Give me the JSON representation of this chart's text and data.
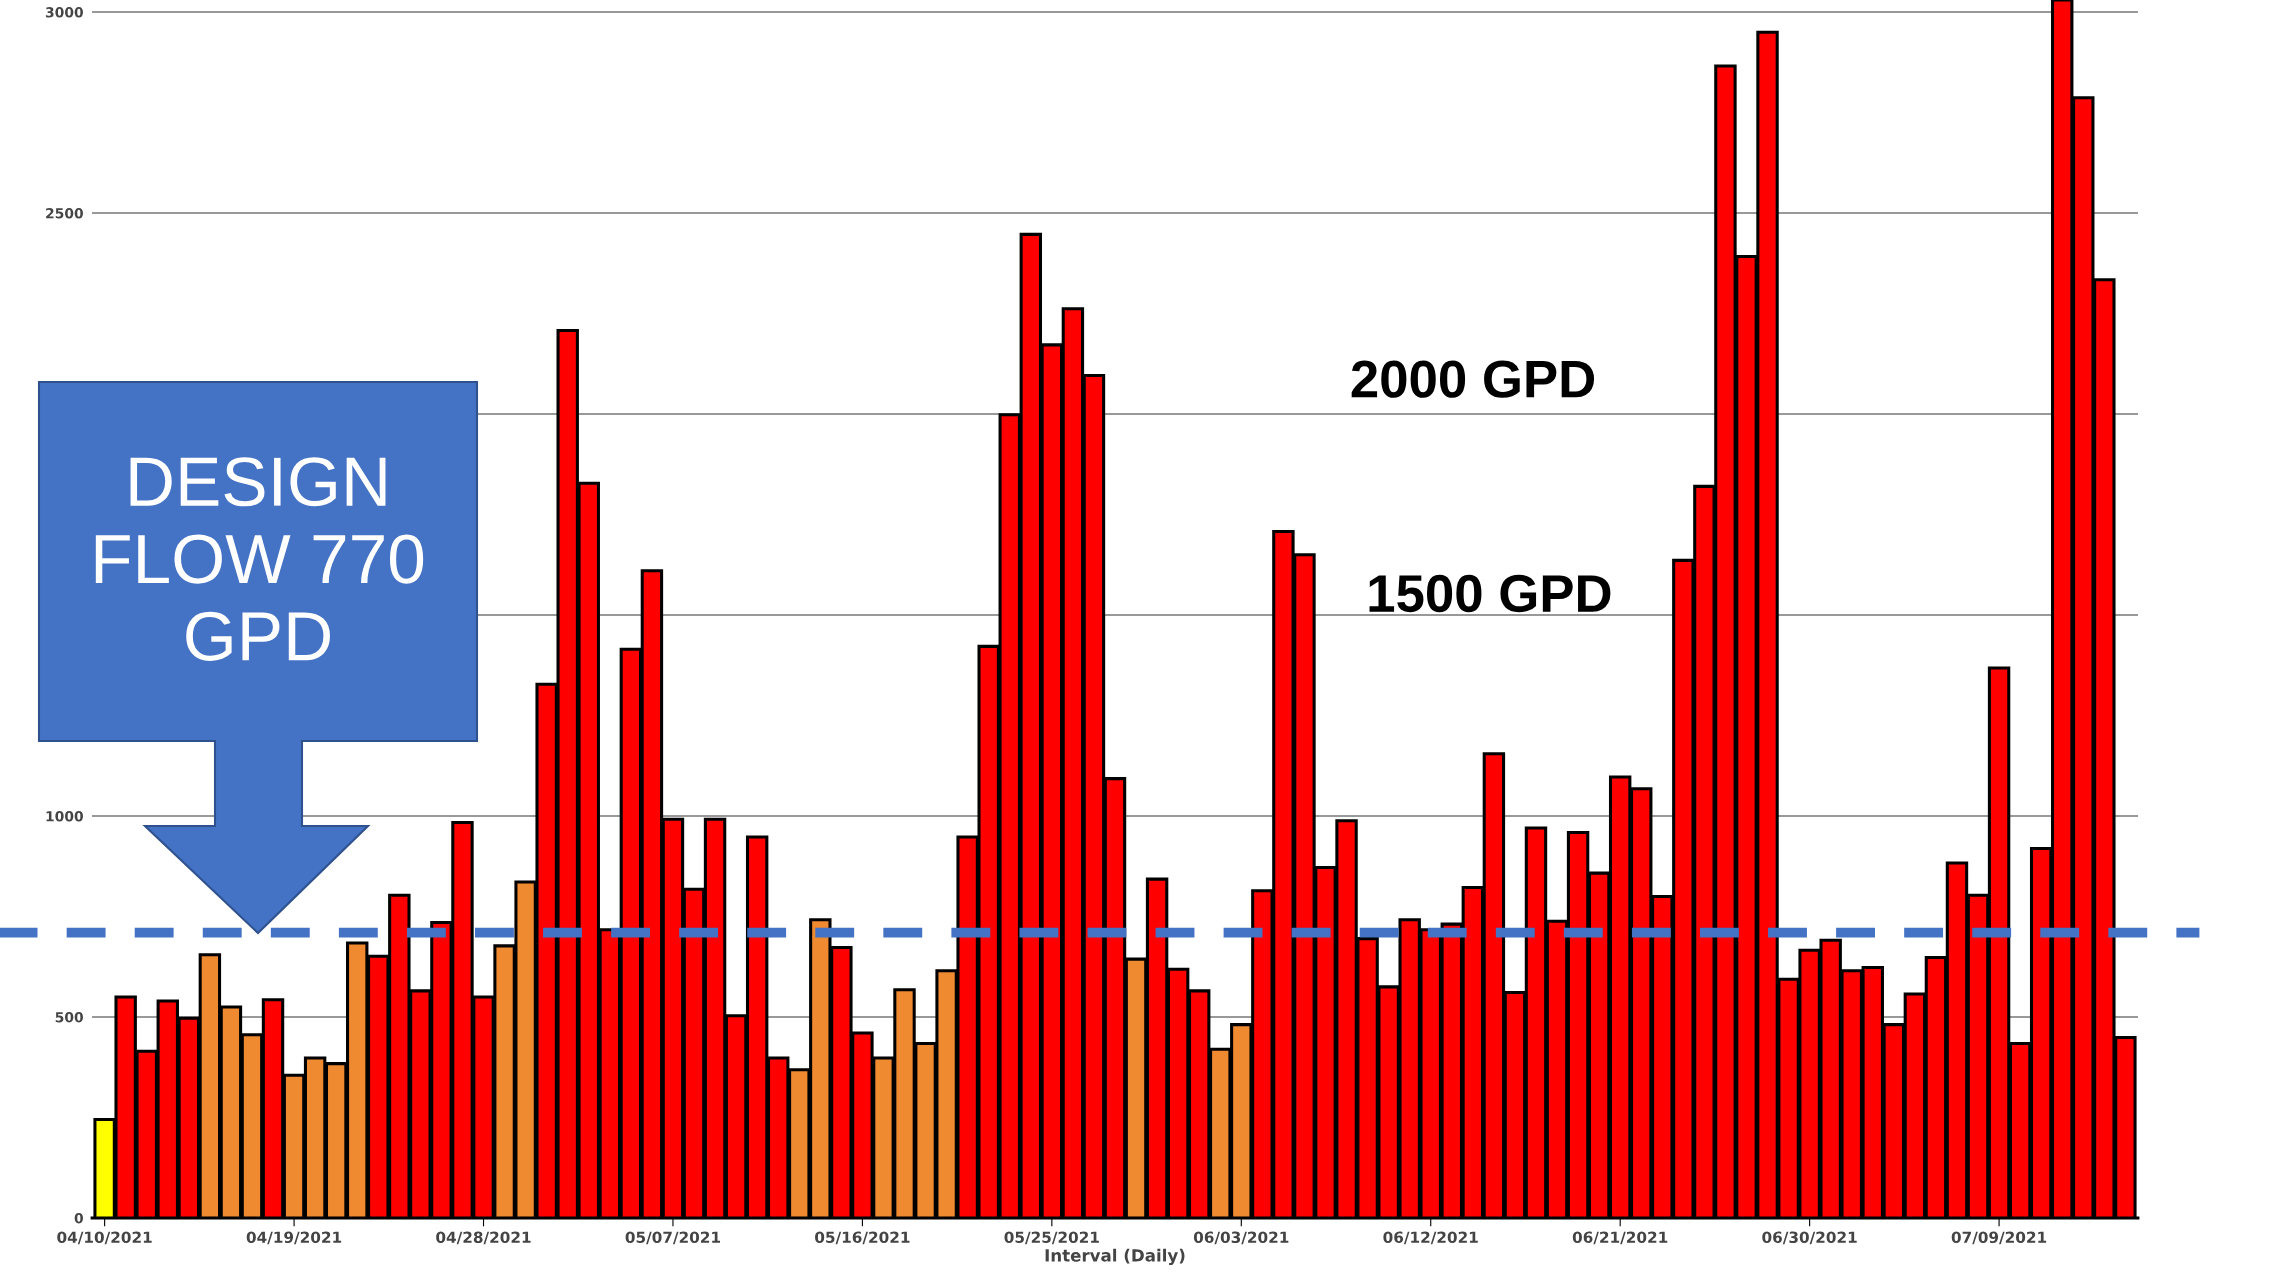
{
  "chart_data": {
    "type": "bar",
    "xlabel": "Interval (Daily)",
    "categories": [
      "04/10/2021",
      null,
      null,
      null,
      null,
      null,
      null,
      null,
      null,
      "04/19/2021",
      null,
      null,
      null,
      null,
      null,
      null,
      null,
      null,
      "04/28/2021",
      null,
      null,
      null,
      null,
      null,
      null,
      null,
      null,
      "05/07/2021",
      null,
      null,
      null,
      null,
      null,
      null,
      null,
      null,
      "05/16/2021",
      null,
      null,
      null,
      null,
      null,
      null,
      null,
      null,
      "05/25/2021",
      null,
      null,
      null,
      null,
      null,
      null,
      null,
      null,
      "06/03/2021",
      null,
      null,
      null,
      null,
      null,
      null,
      null,
      null,
      "06/12/2021",
      null,
      null,
      null,
      null,
      null,
      null,
      null,
      null,
      "06/21/2021",
      null,
      null,
      null,
      null,
      null,
      null,
      null,
      null,
      "06/30/2021",
      null,
      null,
      null,
      null,
      null,
      null,
      null,
      null,
      "07/09/2021",
      null,
      null,
      null,
      null,
      null,
      null
    ],
    "values": [
      245,
      550,
      415,
      540,
      497,
      655,
      525,
      456,
      543,
      355,
      398,
      384,
      684,
      651,
      803,
      565,
      735,
      984,
      550,
      677,
      836,
      1328,
      2208,
      1828,
      717,
      1415,
      1610,
      992,
      818,
      992,
      503,
      948,
      398,
      369,
      742,
      673,
      460,
      398,
      568,
      434,
      615,
      948,
      1422,
      1998,
      2447,
      2172,
      2262,
      2096,
      1093,
      644,
      843,
      619,
      565,
      420,
      481,
      814,
      1708,
      1650,
      872,
      988,
      695,
      575,
      742,
      717,
      731,
      822,
      1155,
      561,
      970,
      738,
      959,
      858,
      1097,
      1068,
      800,
      1636,
      1820,
      2866,
      2392,
      2950,
      594,
      666,
      691,
      615,
      623,
      481,
      557,
      648,
      883,
      803,
      1368,
      434,
      919,
      3030,
      2787,
      2334,
      449
    ],
    "colors": [
      "#ffff00",
      "#ff0000",
      "#ff0000",
      "#ff0000",
      "#ff0000",
      "#f08a30",
      "#f08a30",
      "#f08a30",
      "#ff0000",
      "#f08a30",
      "#f08a30",
      "#f08a30",
      "#f08a30",
      "#ff0000",
      "#ff0000",
      "#ff0000",
      "#ff0000",
      "#ff0000",
      "#ff0000",
      "#f08a30",
      "#f08a30",
      "#ff0000",
      "#ff0000",
      "#ff0000",
      "#ff0000",
      "#ff0000",
      "#ff0000",
      "#ff0000",
      "#ff0000",
      "#ff0000",
      "#ff0000",
      "#ff0000",
      "#ff0000",
      "#f08a30",
      "#f08a30",
      "#ff0000",
      "#ff0000",
      "#f08a30",
      "#f08a30",
      "#f08a30",
      "#f08a30",
      "#ff0000",
      "#ff0000",
      "#ff0000",
      "#ff0000",
      "#ff0000",
      "#ff0000",
      "#ff0000",
      "#ff0000",
      "#f08a30",
      "#ff0000",
      "#ff0000",
      "#ff0000",
      "#f08a30",
      "#f08a30",
      "#ff0000",
      "#ff0000",
      "#ff0000",
      "#ff0000",
      "#ff0000",
      "#ff0000",
      "#ff0000",
      "#ff0000",
      "#ff0000",
      "#ff0000",
      "#ff0000",
      "#ff0000",
      "#ff0000",
      "#ff0000",
      "#ff0000",
      "#ff0000",
      "#ff0000",
      "#ff0000",
      "#ff0000",
      "#ff0000",
      "#ff0000",
      "#ff0000",
      "#ff0000",
      "#ff0000",
      "#ff0000",
      "#ff0000",
      "#ff0000",
      "#ff0000",
      "#ff0000",
      "#ff0000",
      "#ff0000",
      "#ff0000",
      "#ff0000",
      "#ff0000",
      "#ff0000",
      "#ff0000",
      "#ff0000",
      "#ff0000",
      "#ff0000",
      "#ff0000",
      "#ff0000",
      "#ff0000"
    ],
    "ylim": [
      0,
      3030
    ],
    "yticks": [
      0,
      500,
      1000,
      {
        "value": 1500,
        "label": null
      },
      {
        "value": 2000,
        "label": null
      },
      2500,
      3000
    ],
    "grid": "y",
    "ref_lines": [
      {
        "axis": "y",
        "value": 710,
        "color": "#4472c4",
        "line_style": "dashed"
      }
    ],
    "annotations": [
      "DESIGN\nFLOW 770\nGPD",
      "2000 GPD",
      "1500 GPD"
    ]
  }
}
